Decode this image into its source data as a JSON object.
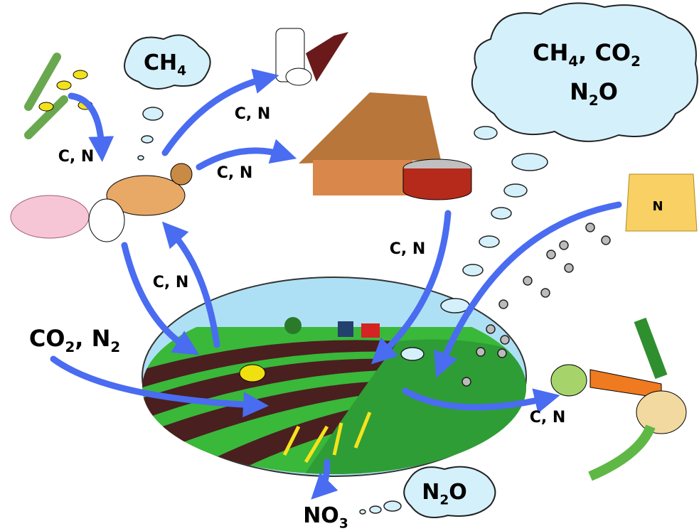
{
  "clouds": {
    "top_left": [
      "CH",
      "4"
    ],
    "top_right": {
      "line1": [
        "CH",
        "4",
        ", CO",
        "2"
      ],
      "line2": [
        "N",
        "2",
        "O"
      ]
    },
    "bottom": [
      "N",
      "2",
      "O"
    ]
  },
  "inputs": {
    "atmosphere": [
      "CO",
      "2",
      ", N",
      "2"
    ],
    "fertilizer": "N"
  },
  "outputs": {
    "leaching": [
      "NO",
      "3"
    ]
  },
  "flows": [
    "C, N",
    "C, N",
    "C, N",
    "C, N",
    "C, N",
    "C, N"
  ]
}
